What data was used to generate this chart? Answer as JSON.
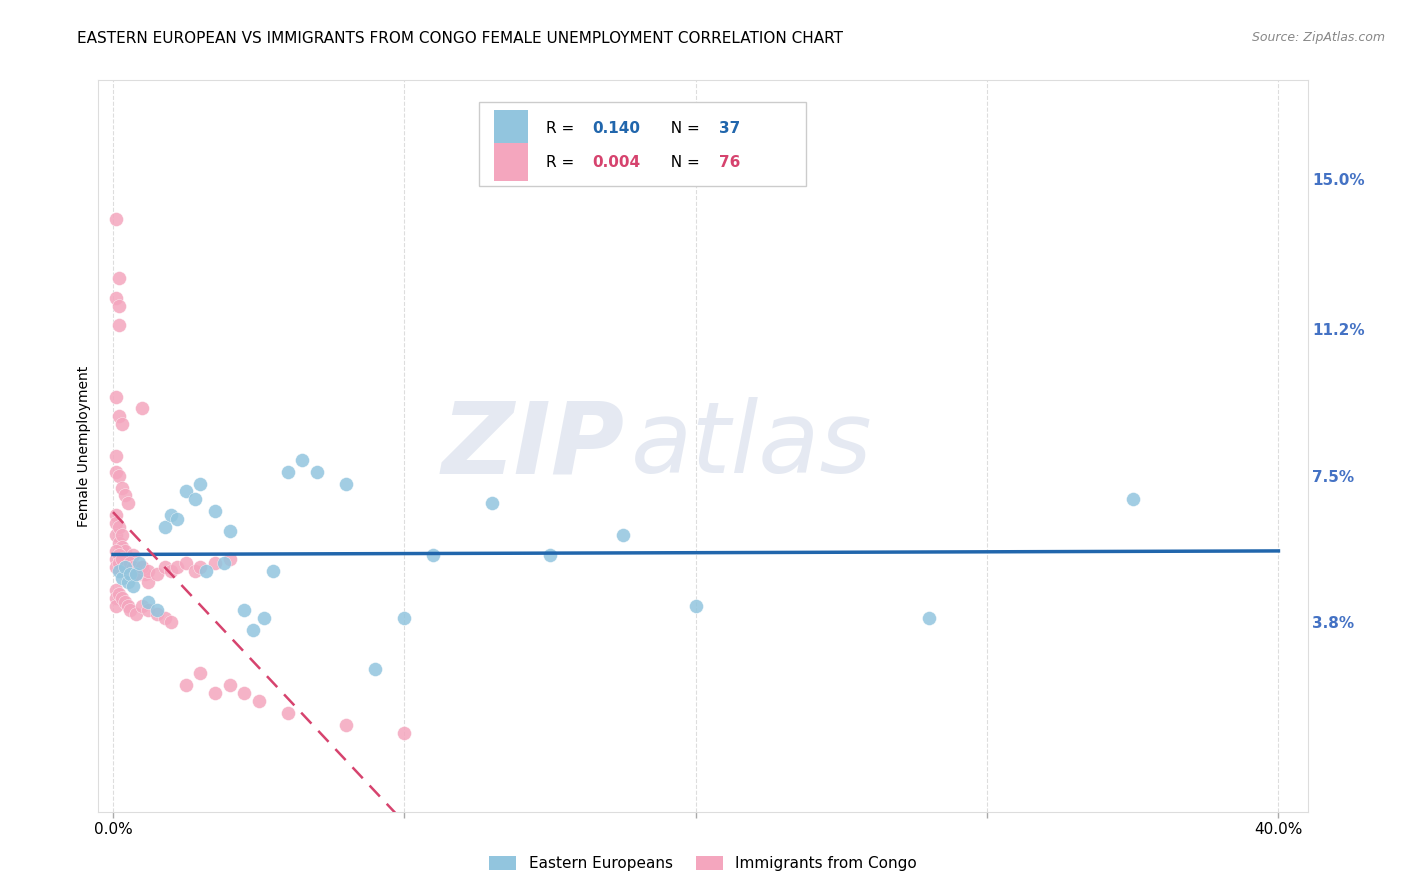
{
  "title": "EASTERN EUROPEAN VS IMMIGRANTS FROM CONGO FEMALE UNEMPLOYMENT CORRELATION CHART",
  "source": "Source: ZipAtlas.com",
  "ylabel": "Female Unemployment",
  "xlim": [
    -0.005,
    0.41
  ],
  "ylim": [
    -0.01,
    0.175
  ],
  "xticks": [
    0.0,
    0.1,
    0.2,
    0.3,
    0.4
  ],
  "xticklabels": [
    "0.0%",
    "",
    "",
    "",
    "40.0%"
  ],
  "ytick_positions": [
    0.038,
    0.075,
    0.112,
    0.15
  ],
  "ytick_labels": [
    "3.8%",
    "7.5%",
    "11.2%",
    "15.0%"
  ],
  "watermark_zip": "ZIP",
  "watermark_atlas": "atlas",
  "blue_color": "#92c5de",
  "pink_color": "#f4a6be",
  "blue_line_color": "#2166ac",
  "pink_line_color": "#d6436e",
  "background_color": "#ffffff",
  "grid_color": "#dddddd",
  "title_fontsize": 11,
  "axis_label_fontsize": 10,
  "tick_fontsize": 11,
  "right_tick_color": "#4472c4",
  "ee_R": 0.14,
  "ee_N": 37,
  "cg_R": 0.004,
  "cg_N": 76,
  "ee_trend_start_y": 0.048,
  "ee_trend_end_y": 0.068,
  "cg_trend_start_y": 0.055,
  "cg_trend_end_y": 0.058
}
